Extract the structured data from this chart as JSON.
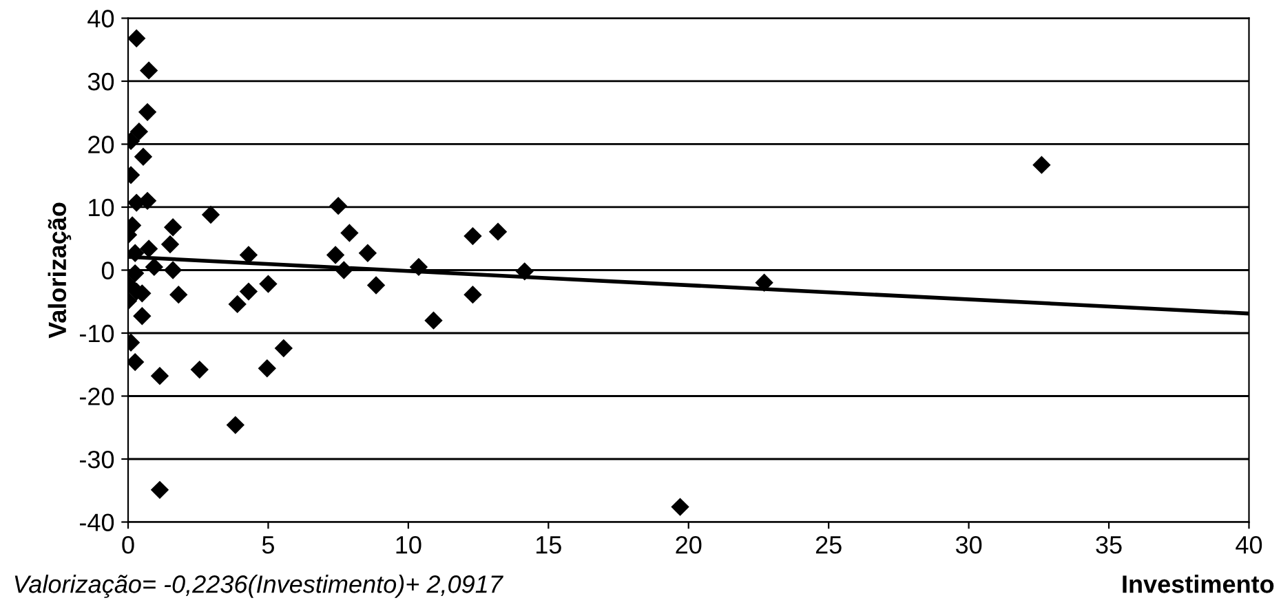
{
  "chart_data": {
    "type": "scatter",
    "xlabel": "Investimento",
    "ylabel": "Valorização",
    "annotations": [
      "Valorização= -0,2236(Investimento)+ 2,0917"
    ],
    "xlim": [
      0,
      40
    ],
    "xticks": [
      0,
      5,
      10,
      15,
      20,
      25,
      30,
      35,
      40
    ],
    "ylim": [
      -40,
      40
    ],
    "yticks": [
      -40,
      -30,
      -20,
      -10,
      0,
      10,
      20,
      30,
      40
    ],
    "grid": "y",
    "legend": false,
    "series": [
      {
        "color": "#000000",
        "marker": "diamond",
        "x": [
          0.3,
          0.74,
          0.69,
          0.39,
          0.1,
          0.54,
          0.1,
          0.3,
          0.69,
          2.95,
          7.5,
          0.15,
          0,
          1.6,
          1.5,
          0.74,
          7.9,
          0.25,
          4.3,
          7.4,
          8.55,
          0.93,
          1.6,
          7.7,
          1.8,
          4.3,
          5.0,
          3.9,
          8.85,
          0.25,
          0,
          0.3,
          0.5,
          0,
          0.5,
          0.1,
          0.25,
          1.13,
          2.55,
          4.96,
          5.55,
          3.83,
          1.13,
          10.37,
          10.9,
          12.3,
          12.3,
          13.2,
          14.15,
          22.7,
          19.7,
          32.6
        ],
        "values": [
          36.8,
          31.7,
          25.1,
          22,
          20.5,
          18,
          15.1,
          10.7,
          11,
          8.8,
          10.2,
          7.1,
          5.6,
          6.8,
          4.1,
          3.4,
          5.9,
          2.7,
          2.4,
          2.4,
          2.7,
          0.5,
          0,
          0,
          -3.9,
          -3.4,
          -2.2,
          -5.4,
          -2.4,
          -0.5,
          -2.2,
          -3.4,
          -3.7,
          -4.9,
          -7.3,
          -11.5,
          -14.6,
          -16.8,
          -15.8,
          -15.6,
          -12.4,
          -24.6,
          -34.9,
          0.5,
          -8,
          5.4,
          -3.9,
          6.1,
          -0.2,
          -2,
          -37.6,
          16.7
        ]
      },
      {
        "type": "line",
        "color": "#000000",
        "marker": "none",
        "line_style": "solid",
        "x": [
          0,
          40
        ],
        "values": [
          2.1,
          -6.9
        ]
      }
    ]
  }
}
